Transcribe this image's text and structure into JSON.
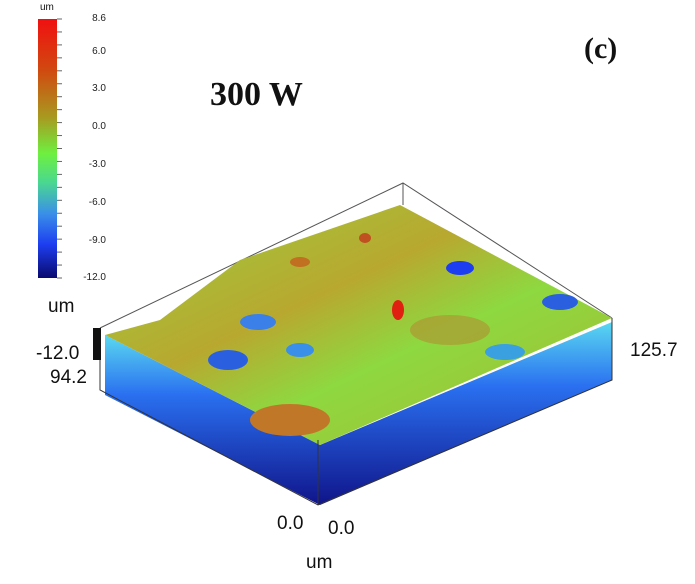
{
  "panel_label": "(c)",
  "title": "300 W",
  "chart_data": {
    "type": "3d-surface",
    "colorbar": {
      "unit": "um",
      "ticks": [
        "8.6",
        "6.0",
        "3.0",
        "0.0",
        "-3.0",
        "-6.0",
        "-9.0",
        "-12.0"
      ],
      "range": [
        -12.0,
        8.6
      ],
      "colormap": [
        "#0a0a6e",
        "#1d3ef0",
        "#3fa0e0",
        "#4fe07a",
        "#6ef040",
        "#b0a020",
        "#d05010",
        "#f01010"
      ]
    },
    "z_axis": {
      "unit": "um",
      "min_label": "-12.0"
    },
    "y_axis": {
      "max_label": "94.2",
      "min_label": "0.0"
    },
    "x_axis": {
      "min_label": "0.0",
      "max_label": "125.7",
      "unit": "um"
    }
  }
}
